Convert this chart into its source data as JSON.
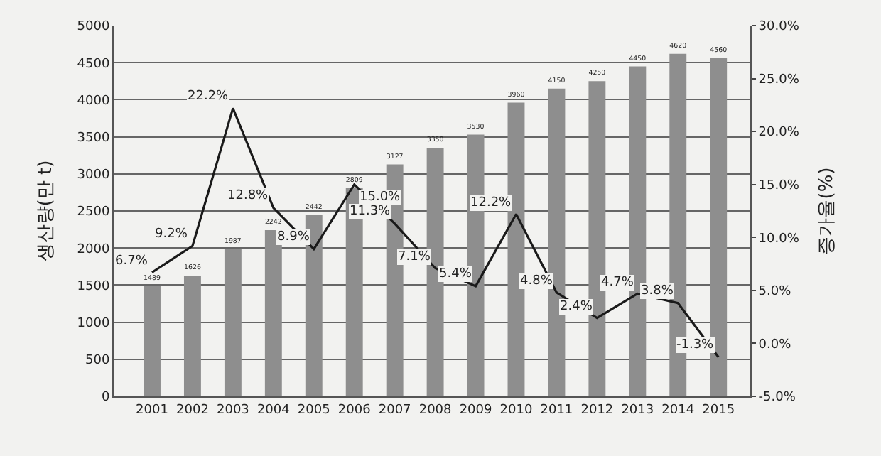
{
  "chart_data": {
    "type": "bar",
    "ylabel": "생산량(만 t)",
    "y2label": "증가율(%)",
    "categories": [
      "2001",
      "2002",
      "2003",
      "2004",
      "2005",
      "2006",
      "2007",
      "2008",
      "2009",
      "2010",
      "2011",
      "2012",
      "2013",
      "2014",
      "2015"
    ],
    "series": [
      {
        "color": "#8e8e8e",
        "values": [
          1489,
          1626,
          1987,
          2242,
          2442,
          2809,
          3127,
          3350,
          3530,
          3960,
          4150,
          4250,
          4450,
          4620,
          4560
        ],
        "value_labels": [
          "1489",
          "1626",
          "1987",
          "2242",
          "2442",
          "2809",
          "3127",
          "3350",
          "3530",
          "3960",
          "4150",
          "4250",
          "4450",
          "4620",
          "4560"
        ]
      },
      {
        "type": "line",
        "axis": "y2",
        "color": "#1a1a1a",
        "values": [
          6.7,
          9.2,
          22.2,
          12.8,
          8.9,
          15.0,
          11.3,
          7.1,
          5.4,
          12.2,
          4.8,
          2.4,
          4.7,
          3.8,
          -1.3
        ],
        "value_labels": [
          "6.7%",
          "9.2%",
          "22.2%",
          "12.8%",
          "8.9%",
          "15.0%",
          "11.3%",
          "7.1%",
          "5.4%",
          "12.2%",
          "4.8%",
          "2.4%",
          "4.7%",
          "3.8%",
          "-1.3%"
        ]
      }
    ],
    "ylim": [
      0,
      5000
    ],
    "yticks": [
      0,
      500,
      1000,
      1500,
      2000,
      2500,
      3000,
      3500,
      4000,
      4500,
      5000
    ],
    "y2lim": [
      -5,
      30
    ],
    "y2ticks": [
      {
        "value": -5,
        "label": "-5.0%"
      },
      {
        "value": 0,
        "label": "0.0%"
      },
      {
        "value": 5,
        "label": "5.0%"
      },
      {
        "value": 10,
        "label": "10.0%"
      },
      {
        "value": 15,
        "label": "15.0%"
      },
      {
        "value": 20,
        "label": "20.0%"
      },
      {
        "value": 25,
        "label": "25.0%"
      },
      {
        "value": 30,
        "label": "30.0%"
      }
    ],
    "grid": "y",
    "legend": false,
    "marker": "none",
    "line_style": "solid"
  }
}
